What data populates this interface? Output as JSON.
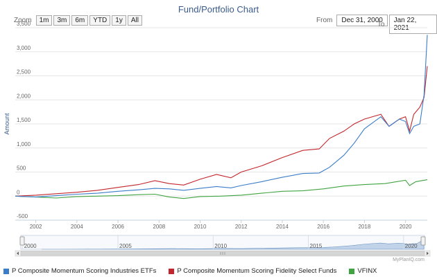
{
  "title": "Fund/Portfolio Chart",
  "zoom": {
    "label": "Zoom",
    "buttons": [
      "1m",
      "3m",
      "6m",
      "YTD",
      "1y",
      "All"
    ]
  },
  "range": {
    "from_label": "From",
    "from_value": "Dec 31, 2000",
    "to_label": "To",
    "to_value": "Jan 22, 2021"
  },
  "credit": "MyPlanIQ.com",
  "colors": {
    "series1": "#3a7cc9",
    "series2": "#c2252b",
    "series3": "#3fa33f",
    "navigator": "#a9c3e0"
  },
  "chart_data": {
    "type": "line",
    "ylabel": "Amount",
    "ylim": [
      -500,
      3500
    ],
    "yticks": [
      "-500",
      "0",
      "500",
      "1,000",
      "1,500",
      "2,000",
      "2,500",
      "3,000",
      "3,500"
    ],
    "xlim": [
      2001,
      2021.06
    ],
    "xticks": [
      "2002",
      "2004",
      "2006",
      "2008",
      "2010",
      "2012",
      "2014",
      "2016",
      "2018",
      "2020"
    ],
    "navigator_ticks": [
      "2000",
      "2005",
      "2010",
      "2015",
      "2020"
    ],
    "series": [
      {
        "name": "P Composite Momentum Scoring Industries ETFs",
        "x": [
          2001,
          2002,
          2003,
          2004,
          2005,
          2006,
          2007,
          2007.8,
          2008.5,
          2009.2,
          2010,
          2010.8,
          2011.5,
          2012,
          2013,
          2014,
          2015,
          2015.8,
          2016.3,
          2017,
          2017.5,
          2018,
          2018.8,
          2019.2,
          2019.7,
          2020,
          2020.2,
          2020.4,
          2020.7,
          2020.9,
          2021.06
        ],
        "values": [
          0,
          -20,
          10,
          40,
          60,
          100,
          130,
          160,
          150,
          120,
          160,
          200,
          170,
          220,
          300,
          390,
          470,
          480,
          600,
          850,
          1100,
          1400,
          1650,
          1450,
          1600,
          1550,
          1300,
          1450,
          1500,
          2100,
          3350
        ]
      },
      {
        "name": "P Composite Momentum Scoring Fidelity Select Funds",
        "x": [
          2001,
          2002,
          2003,
          2004,
          2005,
          2006,
          2007,
          2007.8,
          2008.5,
          2009.2,
          2010,
          2010.8,
          2011.5,
          2012,
          2013,
          2014,
          2015,
          2015.8,
          2016.3,
          2017,
          2017.5,
          2018,
          2018.8,
          2019.2,
          2019.7,
          2020,
          2020.2,
          2020.4,
          2020.7,
          2020.9,
          2021.06
        ],
        "values": [
          0,
          20,
          50,
          80,
          120,
          180,
          240,
          320,
          260,
          230,
          350,
          450,
          380,
          500,
          630,
          800,
          950,
          980,
          1200,
          1350,
          1500,
          1600,
          1700,
          1450,
          1600,
          1650,
          1350,
          1700,
          1850,
          2050,
          2700
        ]
      },
      {
        "name": "VFINX",
        "x": [
          2001,
          2002,
          2003,
          2004,
          2005,
          2006,
          2007,
          2007.8,
          2008.5,
          2009.2,
          2010,
          2011,
          2012,
          2013,
          2014,
          2015,
          2016,
          2017,
          2018,
          2019,
          2020,
          2020.2,
          2020.5,
          2021.06
        ],
        "values": [
          0,
          -20,
          -40,
          -10,
          0,
          10,
          30,
          40,
          -20,
          -50,
          -10,
          0,
          20,
          60,
          100,
          110,
          150,
          210,
          240,
          260,
          330,
          220,
          300,
          340
        ]
      }
    ],
    "legend_position": "bottom-left",
    "grid": "horizontal"
  }
}
